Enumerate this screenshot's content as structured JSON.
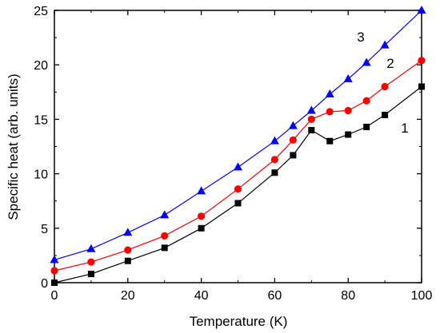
{
  "chart_data": {
    "type": "line",
    "xlabel": "Temperature (K)",
    "ylabel": "Specific heat (arb. units)",
    "xlim": [
      0,
      100
    ],
    "ylim": [
      0,
      25
    ],
    "xticks": [
      0,
      20,
      40,
      60,
      80,
      100
    ],
    "yticks": [
      0,
      5,
      10,
      15,
      20,
      25
    ],
    "grid": false,
    "series": [
      {
        "name": "1",
        "color": "#000000",
        "marker": "square",
        "x": [
          0,
          10,
          20,
          30,
          40,
          50,
          60,
          65,
          70,
          75,
          80,
          85,
          90,
          100
        ],
        "y": [
          0.0,
          0.8,
          2.0,
          3.2,
          5.0,
          7.3,
          10.1,
          11.7,
          14.0,
          13.0,
          13.6,
          14.3,
          15.4,
          18.0
        ]
      },
      {
        "name": "2",
        "color": "#ff0000",
        "marker": "circle",
        "x": [
          0,
          10,
          20,
          30,
          40,
          50,
          60,
          65,
          70,
          75,
          80,
          85,
          90,
          100
        ],
        "y": [
          1.1,
          1.9,
          3.0,
          4.3,
          6.1,
          8.6,
          11.3,
          13.1,
          15.0,
          15.7,
          15.8,
          16.7,
          18.0,
          20.4
        ]
      },
      {
        "name": "3",
        "color": "#0000ff",
        "marker": "triangle",
        "x": [
          0,
          10,
          20,
          30,
          40,
          50,
          60,
          65,
          70,
          75,
          80,
          85,
          90,
          100
        ],
        "y": [
          2.1,
          3.1,
          4.6,
          6.2,
          8.4,
          10.6,
          13.0,
          14.4,
          15.8,
          17.3,
          18.7,
          20.2,
          21.8,
          25.0
        ]
      }
    ]
  }
}
